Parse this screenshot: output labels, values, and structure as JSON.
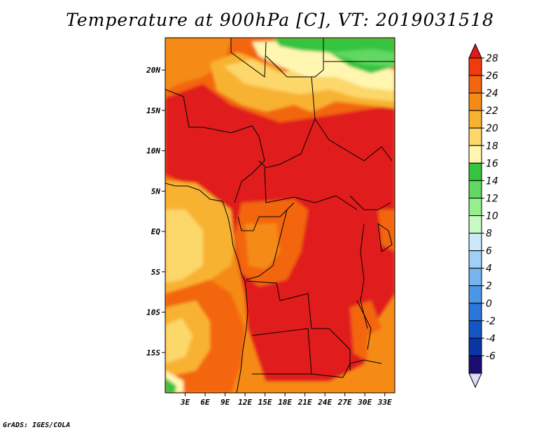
{
  "title": "Temperature at 900hPa [C], VT: 2019031518",
  "credit": "GrADS: IGES/COLA",
  "map": {
    "lon_range": [
      0,
      34.5
    ],
    "lat_range": [
      -20,
      24
    ],
    "x_ticks": [
      {
        "lon": 3,
        "label": "3E"
      },
      {
        "lon": 6,
        "label": "6E"
      },
      {
        "lon": 9,
        "label": "9E"
      },
      {
        "lon": 12,
        "label": "12E"
      },
      {
        "lon": 15,
        "label": "15E"
      },
      {
        "lon": 18,
        "label": "18E"
      },
      {
        "lon": 21,
        "label": "21E"
      },
      {
        "lon": 24,
        "label": "24E"
      },
      {
        "lon": 27,
        "label": "27E"
      },
      {
        "lon": 30,
        "label": "30E"
      },
      {
        "lon": 33,
        "label": "33E"
      }
    ],
    "y_ticks": [
      {
        "lat": 20,
        "label": "20N"
      },
      {
        "lat": 15,
        "label": "15N"
      },
      {
        "lat": 10,
        "label": "10N"
      },
      {
        "lat": 5,
        "label": "5N"
      },
      {
        "lat": 0,
        "label": "EQ"
      },
      {
        "lat": -5,
        "label": "5S"
      },
      {
        "lat": -10,
        "label": "10S"
      },
      {
        "lat": -15,
        "label": "15S"
      }
    ]
  },
  "colorbar": {
    "labels": [
      "28",
      "26",
      "24",
      "22",
      "20",
      "18",
      "16",
      "14",
      "12",
      "10",
      "8",
      "6",
      "4",
      "2",
      "0",
      "-2",
      "-4",
      "-6"
    ],
    "colors_top_to_bottom": [
      "#e01a1a",
      "#f03c0c",
      "#f3660f",
      "#f58b15",
      "#f8b232",
      "#fcd76a",
      "#fff6b0",
      "#35c440",
      "#62d762",
      "#96ef8d",
      "#c8fac3",
      "#cce9fb",
      "#a1d0f6",
      "#75b4ef",
      "#4b97e6",
      "#2a76db",
      "#1556c5",
      "#0a35a5",
      "#1a0f70",
      "#dcdcf4"
    ]
  },
  "legend_colors": {
    "c28": "#e01a1a",
    "c26": "#f03c0c",
    "c24": "#f3660f",
    "c22": "#f58b15",
    "c20": "#f8b232",
    "c18": "#fcd76a",
    "c16": "#fff6b0",
    "c14": "#35c440"
  }
}
